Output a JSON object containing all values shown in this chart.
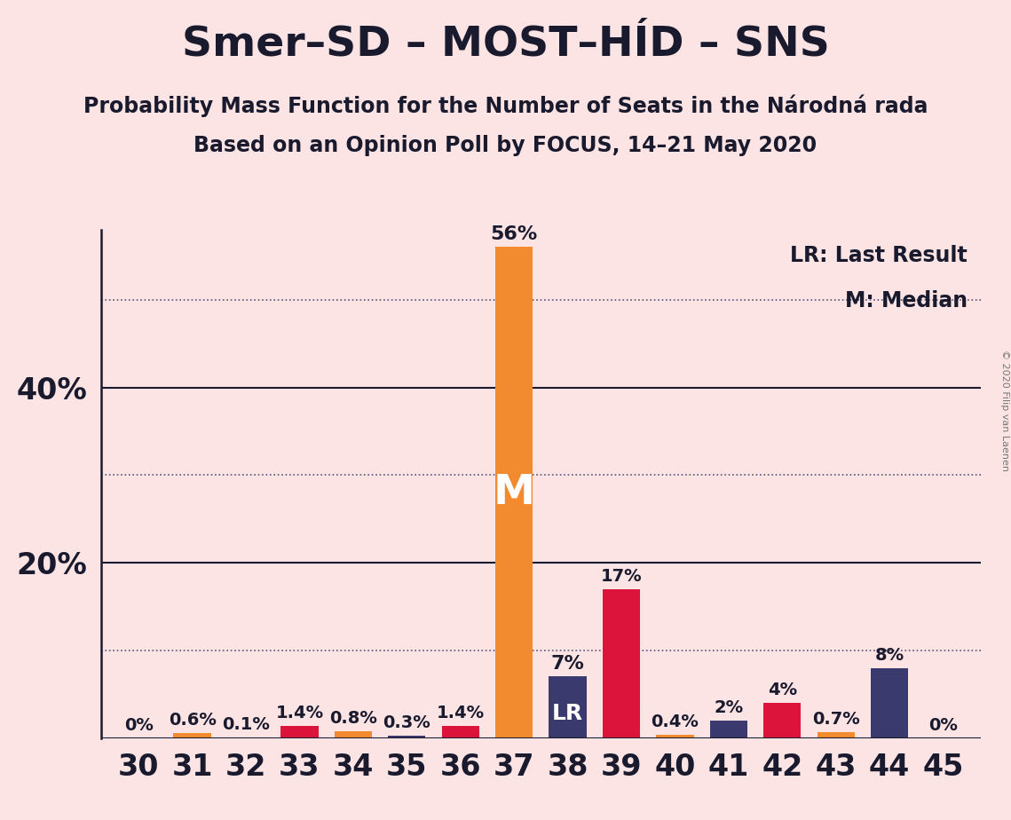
{
  "title": "Smer–SD – MOST–HÍD – SNS",
  "subtitle1": "Probability Mass Function for the Number of Seats in the Národná rada",
  "subtitle2": "Based on an Opinion Poll by FOCUS, 14–21 May 2020",
  "copyright": "© 2020 Filip van Laenen",
  "legend_lr": "LR: Last Result",
  "legend_m": "M: Median",
  "background_color": "#fce4e4",
  "seats": [
    30,
    31,
    32,
    33,
    34,
    35,
    36,
    37,
    38,
    39,
    40,
    41,
    42,
    43,
    44,
    45
  ],
  "values": [
    0.0,
    0.6,
    0.1,
    1.4,
    0.8,
    0.3,
    1.4,
    56.0,
    7.0,
    17.0,
    0.4,
    2.0,
    4.0,
    0.7,
    8.0,
    0.0
  ],
  "labels": [
    "0%",
    "0.6%",
    "0.1%",
    "1.4%",
    "0.8%",
    "0.3%",
    "1.4%",
    "56%",
    "7%",
    "17%",
    "0.4%",
    "2%",
    "4%",
    "0.7%",
    "8%",
    "0%"
  ],
  "bar_colors": [
    "#f28a30",
    "#f28a30",
    "#dc143c",
    "#dc143c",
    "#f28a30",
    "#3a3a6e",
    "#dc143c",
    "#f28a30",
    "#3a3a6e",
    "#dc143c",
    "#f28a30",
    "#3a3a6e",
    "#dc143c",
    "#f28a30",
    "#3a3a6e",
    "#f28a30"
  ],
  "median_seat": 37,
  "lr_seat": 38,
  "ylim_max": 58,
  "solid_grid": [
    20,
    40
  ],
  "dotted_grid": [
    10,
    30,
    50
  ],
  "ytick_positions": [
    20,
    40
  ],
  "ytick_labels": [
    "20%",
    "40%"
  ],
  "title_fontsize": 34,
  "subtitle_fontsize": 17,
  "axis_fontsize": 22,
  "label_fontsize": 14,
  "bar_width": 0.7,
  "spine_color": "#1a1a2e",
  "text_color": "#1a1a2e",
  "grid_color": "#555577",
  "copyright_color": "#777777"
}
